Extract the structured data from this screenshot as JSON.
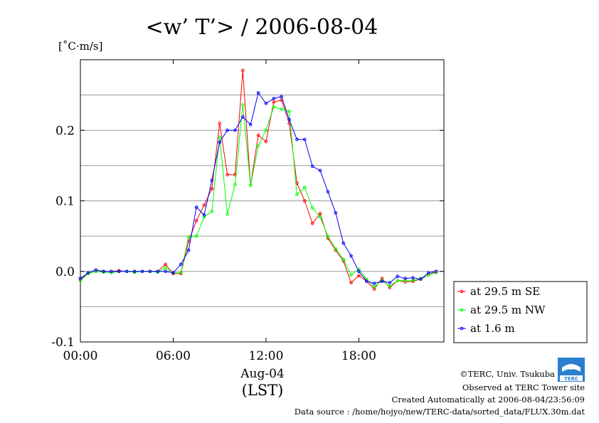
{
  "chart_data": {
    "type": "line",
    "title": "<w’ T’> / 2006-08-04",
    "ylabel": "[˚C·m/s]",
    "xlabel_date": "Aug-04",
    "xlabel_tz": "(LST)",
    "xlim": [
      0,
      23.5
    ],
    "ylim": [
      -0.1,
      0.3
    ],
    "x_ticks": [
      {
        "v": 0,
        "label": "00:00"
      },
      {
        "v": 6,
        "label": "06:00"
      },
      {
        "v": 12,
        "label": "12:00"
      },
      {
        "v": 18,
        "label": "18:00"
      }
    ],
    "y_ticks": [
      {
        "v": -0.1,
        "label": "-0.1"
      },
      {
        "v": 0.0,
        "label": "0.0"
      },
      {
        "v": 0.1,
        "label": "0.1"
      },
      {
        "v": 0.2,
        "label": "0.2"
      }
    ],
    "gridlines": [
      -0.05,
      0.0,
      0.05,
      0.1,
      0.15,
      0.2,
      0.25
    ],
    "x": [
      0,
      0.5,
      1,
      1.5,
      2,
      2.5,
      3,
      3.5,
      4,
      4.5,
      5,
      5.5,
      6,
      6.5,
      7,
      7.5,
      8,
      8.5,
      9,
      9.5,
      10,
      10.5,
      11,
      11.5,
      12,
      12.5,
      13,
      13.5,
      14,
      14.5,
      15,
      15.5,
      16,
      16.5,
      17,
      17.5,
      18,
      18.5,
      19,
      19.5,
      20,
      20.5,
      21,
      21.5,
      22,
      22.5,
      23
    ],
    "series": [
      {
        "name": "at 29.5 m SE",
        "color": "#ff0000",
        "values": [
          -0.011,
          -0.003,
          0.0,
          0.0,
          0.0,
          0.001,
          0.0,
          -0.001,
          0.0,
          0.0,
          0.0,
          0.01,
          -0.003,
          -0.003,
          0.043,
          0.072,
          0.094,
          0.117,
          0.21,
          0.137,
          0.137,
          0.285,
          0.122,
          0.193,
          0.184,
          0.24,
          0.243,
          0.21,
          0.125,
          0.1,
          0.068,
          0.082,
          0.047,
          0.03,
          0.015,
          -0.016,
          -0.006,
          -0.014,
          -0.025,
          -0.01,
          -0.023,
          -0.013,
          -0.015,
          -0.014,
          -0.011,
          -0.005,
          0.0
        ]
      },
      {
        "name": "at 29.5 m NW",
        "color": "#00ff00",
        "values": [
          -0.013,
          -0.003,
          0.0,
          -0.001,
          -0.002,
          0.0,
          0.0,
          -0.001,
          0.0,
          0.0,
          -0.001,
          0.005,
          -0.002,
          -0.002,
          0.049,
          0.05,
          0.077,
          0.085,
          0.19,
          0.081,
          0.123,
          0.236,
          0.122,
          0.178,
          0.2,
          0.233,
          0.23,
          0.227,
          0.109,
          0.119,
          0.09,
          0.077,
          0.05,
          0.032,
          0.017,
          -0.005,
          0.003,
          -0.011,
          -0.022,
          -0.013,
          -0.021,
          -0.013,
          -0.013,
          -0.013,
          -0.01,
          -0.005,
          -0.002
        ]
      },
      {
        "name": "at 1.6 m",
        "color": "#0000ff",
        "values": [
          -0.01,
          -0.002,
          0.002,
          0.0,
          0.0,
          0.0,
          0.0,
          0.0,
          0.0,
          0.0,
          0.0,
          0.0,
          -0.002,
          0.01,
          0.03,
          0.091,
          0.08,
          0.129,
          0.183,
          0.2,
          0.2,
          0.219,
          0.208,
          0.253,
          0.238,
          0.245,
          0.248,
          0.215,
          0.187,
          0.187,
          0.149,
          0.143,
          0.113,
          0.083,
          0.04,
          0.022,
          0.0,
          -0.014,
          -0.017,
          -0.014,
          -0.016,
          -0.007,
          -0.01,
          -0.009,
          -0.011,
          -0.002,
          0.0
        ]
      }
    ],
    "legend_position": "right"
  },
  "credits": {
    "copyright": "©TERC, Univ. Tsukuba",
    "observed": "Observed at TERC Tower site",
    "created": "Created Automatically at 2006-08-04/23:56:09",
    "source": "Data source : /home/hojyo/new/TERC-data/sorted_data/FLUX.30m.dat",
    "logo_text": "TERC"
  }
}
